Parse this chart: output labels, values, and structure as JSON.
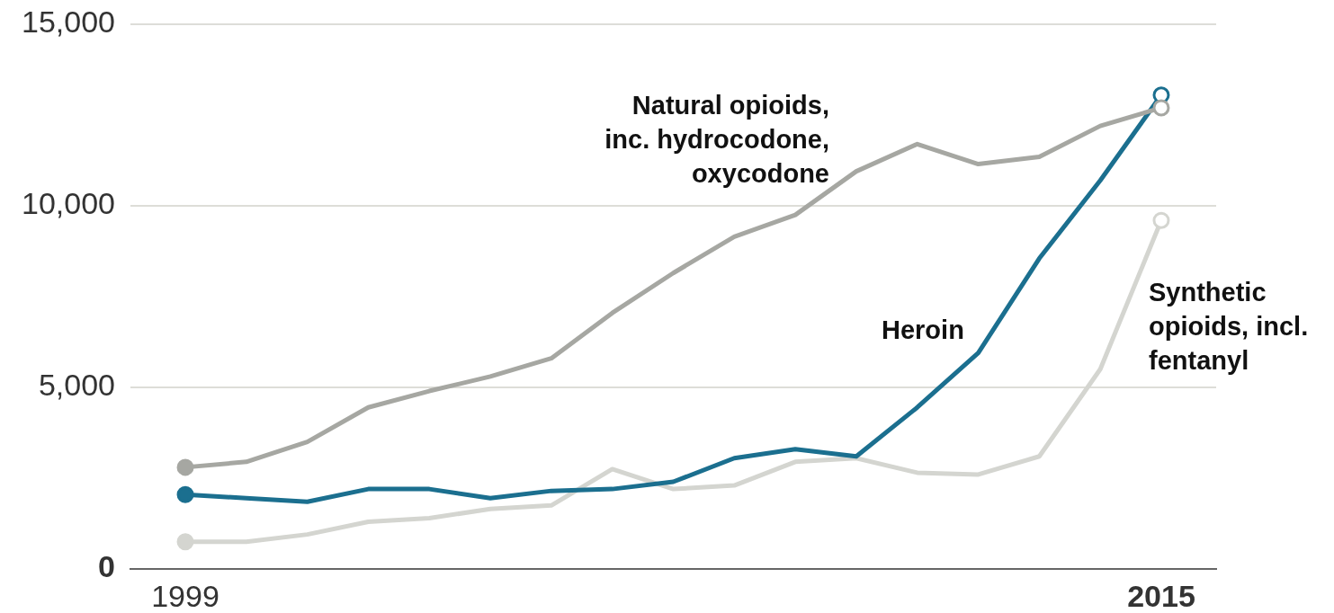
{
  "chart_data": {
    "type": "line",
    "x": [
      1999,
      2000,
      2001,
      2002,
      2003,
      2004,
      2005,
      2006,
      2007,
      2008,
      2009,
      2010,
      2011,
      2012,
      2013,
      2014,
      2015
    ],
    "xlim": [
      1998.1,
      2015.9
    ],
    "xticks": [
      1999,
      2015
    ],
    "ylim": [
      0,
      15000
    ],
    "yticks": [
      0,
      {
        "value": 5000,
        "label": "5,000"
      },
      {
        "value": 10000,
        "label": "10,000"
      },
      {
        "value": 15000,
        "label": "15,000"
      }
    ],
    "grid": "y",
    "line_style": "solid",
    "series": [
      {
        "name": "Natural opioids, inc. hydrocodone, oxycodone",
        "color": "#a6a7a2",
        "values": [
          2800,
          2950,
          3500,
          4450,
          4900,
          5300,
          5800,
          7050,
          8150,
          9150,
          9750,
          10950,
          11700,
          11150,
          11350,
          12200,
          12700
        ]
      },
      {
        "name": "Heroin",
        "color": "#1b6f8f",
        "values": [
          2050,
          1950,
          1850,
          2200,
          2200,
          1950,
          2150,
          2200,
          2400,
          3050,
          3300,
          3100,
          4450,
          5950,
          8550,
          10700,
          13050
        ]
      },
      {
        "name": "Synthetic opioids, incl. fentanyl",
        "color": "#d4d5d0",
        "values": [
          750,
          750,
          950,
          1300,
          1400,
          1650,
          1750,
          2750,
          2200,
          2300,
          2950,
          3050,
          2650,
          2600,
          3100,
          5500,
          9600
        ]
      }
    ]
  }
}
